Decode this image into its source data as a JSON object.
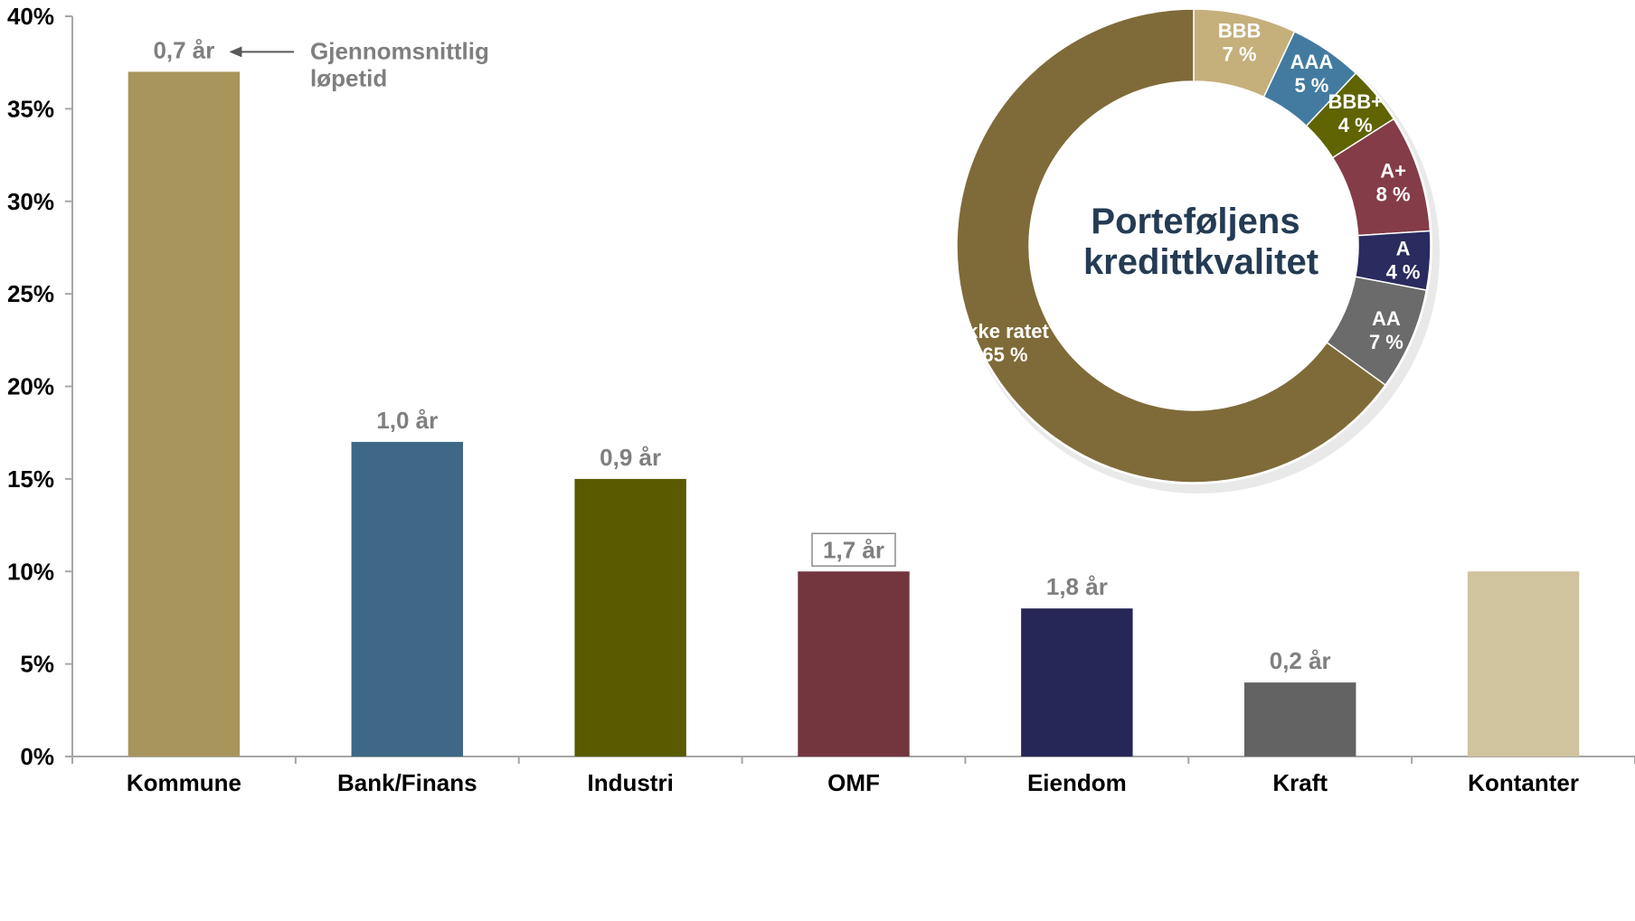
{
  "chart_data": [
    {
      "type": "bar",
      "title": "",
      "xlabel": "",
      "ylabel": "",
      "categories": [
        "Kommune",
        "Bank/Finans",
        "Industri",
        "OMF",
        "Eiendom",
        "Kraft",
        "Kontanter"
      ],
      "values": [
        37,
        17,
        15,
        10,
        8,
        4,
        10
      ],
      "value_unit": "%",
      "ylim": [
        0,
        40
      ],
      "yticks": [
        "0%",
        "5%",
        "10%",
        "15%",
        "20%",
        "25%",
        "30%",
        "35%",
        "40%"
      ],
      "ytick_values": [
        0,
        5,
        10,
        15,
        20,
        25,
        30,
        35,
        40
      ],
      "colors": [
        "#a8955b",
        "#3e6886",
        "#5a5a00",
        "#73363f",
        "#262756",
        "#636363",
        "#d0c49e"
      ],
      "bar_labels": [
        "0,7 år",
        "1,0 år",
        "0,9 år",
        "1,7 år",
        "1,8 år",
        "0,2 år",
        ""
      ],
      "boxed_label_category": "OMF",
      "annotation": {
        "line1": "Gjennomsnittlig",
        "line2": "løpetid",
        "points_to": "Kommune"
      },
      "grid": false
    },
    {
      "type": "pie",
      "style": "donut",
      "title_line1": "Porteføljens",
      "title_line2": "kredittkvalitet",
      "slices": [
        {
          "rating": "BBB",
          "pct": "7 %",
          "value": 7,
          "color": "#c5b07c"
        },
        {
          "rating": "AAA",
          "pct": "5 %",
          "value": 5,
          "color": "#437ba0"
        },
        {
          "rating": "BBB+",
          "pct": "4 %",
          "value": 4,
          "color": "#5f6401"
        },
        {
          "rating": "A+",
          "pct": "8 %",
          "value": 8,
          "color": "#833c48"
        },
        {
          "rating": "A",
          "pct": "4 %",
          "value": 4,
          "color": "#2a2b5e"
        },
        {
          "rating": "AA",
          "pct": "7 %",
          "value": 7,
          "color": "#6b6b6b"
        },
        {
          "rating": "Ikke ratet",
          "pct": "65 %",
          "value": 65,
          "color": "#7f6b39"
        }
      ]
    }
  ]
}
